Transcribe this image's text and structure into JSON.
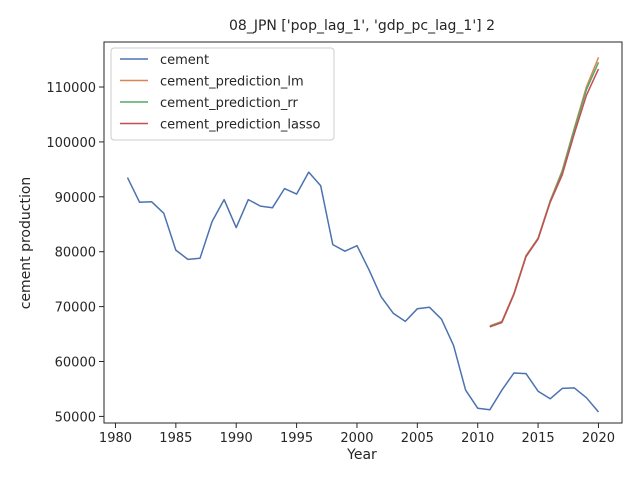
{
  "chart_data": {
    "type": "line",
    "title": "08_JPN ['pop_lag_1', 'gdp_pc_lag_1'] 2",
    "xlabel": "Year",
    "ylabel": "cement production",
    "xlim": [
      1979.05,
      2021.95
    ],
    "ylim": [
      48800,
      118200
    ],
    "xticks": [
      1980,
      1985,
      1990,
      1995,
      2000,
      2005,
      2010,
      2015,
      2020
    ],
    "yticks": [
      50000,
      60000,
      70000,
      80000,
      90000,
      100000,
      110000
    ],
    "grid": false,
    "legend_position": "top-left",
    "series": [
      {
        "name": "cement",
        "color": "#4c72b0",
        "x": [
          1981,
          1982,
          1983,
          1984,
          1985,
          1986,
          1987,
          1988,
          1989,
          1990,
          1991,
          1992,
          1993,
          1994,
          1995,
          1996,
          1997,
          1998,
          1999,
          2000,
          2001,
          2002,
          2003,
          2004,
          2005,
          2006,
          2007,
          2008,
          2009,
          2010,
          2011,
          2012,
          2013,
          2014,
          2015,
          2016,
          2017,
          2018,
          2019,
          2020
        ],
        "y": [
          93500,
          89000,
          89100,
          87000,
          80300,
          78600,
          78800,
          85500,
          89500,
          84400,
          89500,
          88300,
          88000,
          91500,
          90500,
          94500,
          92000,
          81300,
          80100,
          81100,
          76700,
          71800,
          68800,
          67300,
          69600,
          69900,
          67700,
          62900,
          54800,
          51500,
          51200,
          54800,
          57900,
          57800,
          54600,
          53200,
          55100,
          55200,
          53400,
          50800
        ]
      },
      {
        "name": "cement_prediction_lm",
        "color": "#dd8452",
        "x": [
          2011,
          2012,
          2013,
          2014,
          2015,
          2016,
          2017,
          2018,
          2019,
          2020
        ],
        "y": [
          66500,
          67300,
          72400,
          79300,
          82500,
          89300,
          94800,
          102500,
          110000,
          115400
        ]
      },
      {
        "name": "cement_prediction_rr",
        "color": "#55a868",
        "x": [
          2011,
          2012,
          2013,
          2014,
          2015,
          2016,
          2017,
          2018,
          2019,
          2020
        ],
        "y": [
          66400,
          67200,
          72300,
          79200,
          82400,
          89200,
          94500,
          102300,
          109500,
          114500
        ]
      },
      {
        "name": "cement_prediction_lasso",
        "color": "#c44e52",
        "x": [
          2011,
          2012,
          2013,
          2014,
          2015,
          2016,
          2017,
          2018,
          2019,
          2020
        ],
        "y": [
          66300,
          67100,
          72200,
          79100,
          82300,
          89000,
          94000,
          101500,
          108500,
          113300
        ]
      }
    ]
  }
}
